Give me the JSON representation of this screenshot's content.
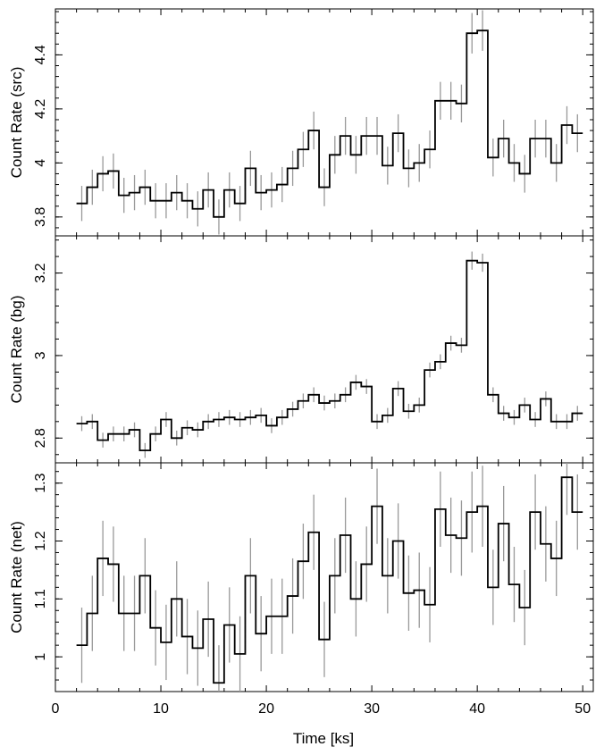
{
  "chart_data": {
    "type": "line",
    "step": true,
    "shared_x": true,
    "xlabel": "Time [ks]",
    "xlim": [
      0,
      51
    ],
    "x_ticks": [
      0,
      10,
      20,
      30,
      40,
      50
    ],
    "bin_width": 1,
    "x_bin_centers": [
      2.5,
      3.5,
      4.5,
      5.5,
      6.5,
      7.5,
      8.5,
      9.5,
      10.5,
      11.5,
      12.5,
      13.5,
      14.5,
      15.5,
      16.5,
      17.5,
      18.5,
      19.5,
      20.5,
      21.5,
      22.5,
      23.5,
      24.5,
      25.5,
      26.5,
      27.5,
      28.5,
      29.5,
      30.5,
      31.5,
      32.5,
      33.5,
      34.5,
      35.5,
      36.5,
      37.5,
      38.5,
      39.5,
      40.5,
      41.5,
      42.5,
      43.5,
      44.5,
      45.5,
      46.5,
      47.5,
      48.5,
      49.5
    ],
    "panels": [
      {
        "name": "src",
        "ylabel": "Count Rate (src)",
        "ylim": [
          3.73,
          4.57
        ],
        "y_ticks": [
          3.8,
          4.0,
          4.2,
          4.4
        ],
        "y_tick_labels": [
          "3.8",
          "4",
          "4.2",
          "4.4"
        ],
        "values": [
          3.85,
          3.91,
          3.96,
          3.97,
          3.88,
          3.89,
          3.91,
          3.86,
          3.86,
          3.89,
          3.86,
          3.83,
          3.9,
          3.8,
          3.9,
          3.85,
          3.98,
          3.89,
          3.9,
          3.92,
          3.98,
          4.05,
          4.12,
          3.91,
          4.03,
          4.1,
          4.03,
          4.1,
          4.1,
          3.99,
          4.11,
          3.98,
          4.0,
          4.05,
          4.23,
          4.23,
          4.22,
          4.48,
          4.49,
          4.02,
          4.09,
          4.0,
          3.96,
          4.09,
          4.09,
          4.0,
          4.14,
          4.11
        ],
        "errors": [
          0.065,
          0.065,
          0.065,
          0.065,
          0.065,
          0.065,
          0.065,
          0.065,
          0.065,
          0.065,
          0.065,
          0.065,
          0.065,
          0.065,
          0.065,
          0.065,
          0.065,
          0.065,
          0.065,
          0.065,
          0.065,
          0.065,
          0.07,
          0.07,
          0.07,
          0.07,
          0.07,
          0.07,
          0.07,
          0.07,
          0.07,
          0.07,
          0.07,
          0.07,
          0.07,
          0.07,
          0.07,
          0.075,
          0.075,
          0.07,
          0.07,
          0.07,
          0.07,
          0.07,
          0.07,
          0.07,
          0.07,
          0.07
        ]
      },
      {
        "name": "bg",
        "ylabel": "Count Rate (bg)",
        "ylim": [
          2.74,
          3.29
        ],
        "y_ticks": [
          2.8,
          3.0,
          3.2
        ],
        "y_tick_labels": [
          "2.8",
          "3",
          "3.2"
        ],
        "values": [
          2.835,
          2.84,
          2.795,
          2.81,
          2.81,
          2.82,
          2.77,
          2.81,
          2.845,
          2.8,
          2.825,
          2.82,
          2.84,
          2.845,
          2.85,
          2.845,
          2.85,
          2.855,
          2.83,
          2.85,
          2.87,
          2.89,
          2.905,
          2.885,
          2.89,
          2.905,
          2.935,
          2.925,
          2.84,
          2.855,
          2.92,
          2.865,
          2.88,
          2.965,
          2.985,
          3.03,
          3.025,
          3.23,
          3.225,
          2.905,
          2.86,
          2.85,
          2.88,
          2.845,
          2.895,
          2.84,
          2.84,
          2.86
        ],
        "errors": [
          0.018,
          0.018,
          0.018,
          0.018,
          0.018,
          0.018,
          0.018,
          0.018,
          0.018,
          0.018,
          0.018,
          0.018,
          0.018,
          0.018,
          0.018,
          0.018,
          0.018,
          0.018,
          0.018,
          0.018,
          0.018,
          0.018,
          0.018,
          0.018,
          0.018,
          0.018,
          0.018,
          0.018,
          0.018,
          0.018,
          0.018,
          0.018,
          0.018,
          0.018,
          0.018,
          0.018,
          0.018,
          0.022,
          0.022,
          0.018,
          0.018,
          0.018,
          0.018,
          0.018,
          0.018,
          0.018,
          0.018,
          0.018
        ]
      },
      {
        "name": "net",
        "ylabel": "Count Rate (net)",
        "ylim": [
          0.94,
          1.335
        ],
        "y_ticks": [
          1.0,
          1.1,
          1.2,
          1.3
        ],
        "y_tick_labels": [
          "1",
          "1.1",
          "1.2",
          "1.3"
        ],
        "values": [
          1.02,
          1.075,
          1.17,
          1.16,
          1.075,
          1.075,
          1.14,
          1.05,
          1.025,
          1.1,
          1.035,
          1.015,
          1.065,
          0.955,
          1.055,
          1.005,
          1.14,
          1.04,
          1.07,
          1.07,
          1.105,
          1.165,
          1.215,
          1.03,
          1.14,
          1.21,
          1.1,
          1.16,
          1.26,
          1.14,
          1.2,
          1.11,
          1.115,
          1.09,
          1.255,
          1.21,
          1.205,
          1.25,
          1.26,
          1.12,
          1.23,
          1.125,
          1.085,
          1.25,
          1.195,
          1.17,
          1.31,
          1.25
        ],
        "errors": [
          0.065,
          0.065,
          0.065,
          0.065,
          0.065,
          0.065,
          0.065,
          0.065,
          0.065,
          0.065,
          0.065,
          0.065,
          0.065,
          0.065,
          0.065,
          0.065,
          0.065,
          0.065,
          0.065,
          0.065,
          0.065,
          0.065,
          0.065,
          0.065,
          0.065,
          0.065,
          0.065,
          0.065,
          0.065,
          0.065,
          0.065,
          0.065,
          0.065,
          0.065,
          0.065,
          0.065,
          0.065,
          0.07,
          0.07,
          0.065,
          0.065,
          0.065,
          0.065,
          0.065,
          0.065,
          0.065,
          0.065,
          0.065
        ]
      }
    ]
  }
}
